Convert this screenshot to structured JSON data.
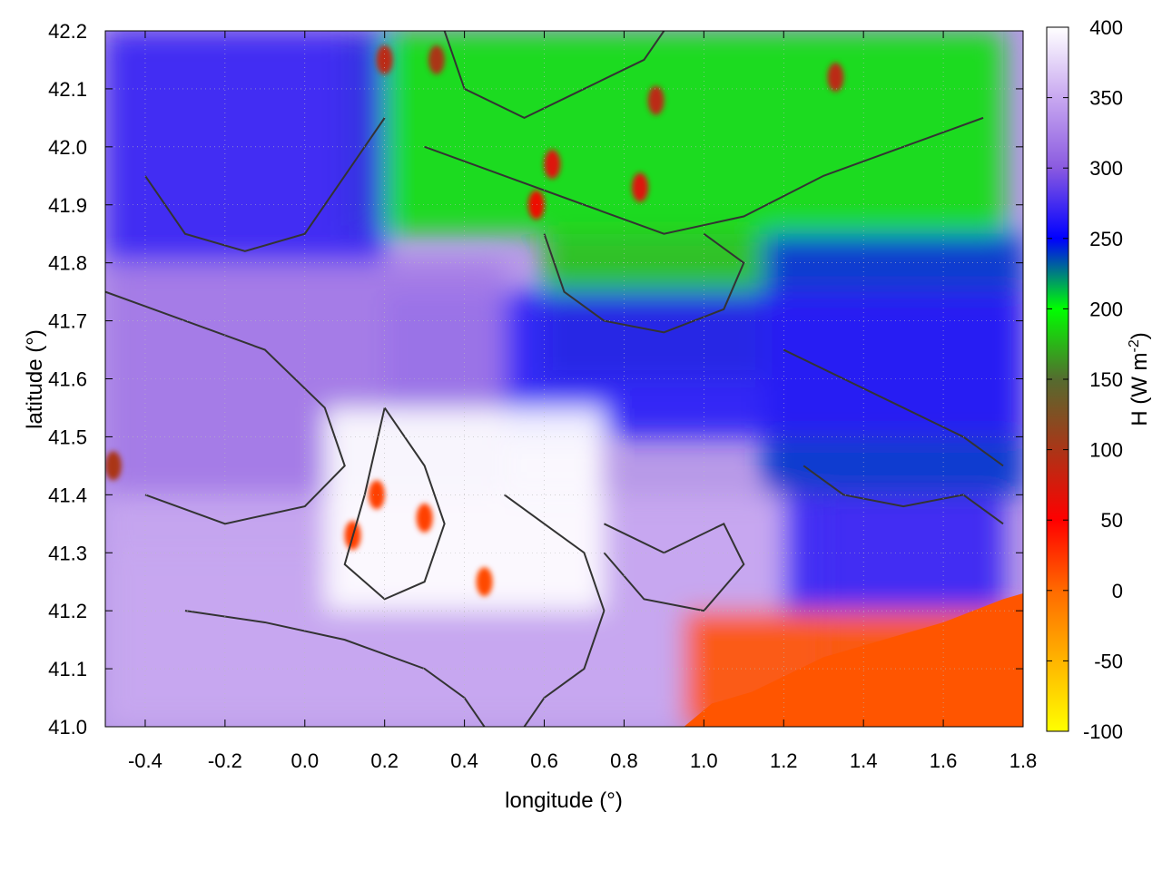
{
  "chart_data": {
    "type": "heatmap",
    "title": "",
    "xlabel": "longitude (°)",
    "ylabel": "latitude (°)",
    "colorbar_label": "H (W m-2)",
    "colorbar_label_parts": {
      "main": "H (W m",
      "sup": "-2",
      "close": ")"
    },
    "xlim": [
      -0.5,
      1.8
    ],
    "ylim": [
      41.0,
      42.2
    ],
    "x_ticks": [
      -0.4,
      -0.2,
      0.0,
      0.2,
      0.4,
      0.6,
      0.8,
      1.0,
      1.2,
      1.4,
      1.6,
      1.8
    ],
    "x_tick_labels": [
      "-0.4",
      "-0.2",
      "0.0",
      "0.2",
      "0.4",
      "0.6",
      "0.8",
      "1.0",
      "1.2",
      "1.4",
      "1.6",
      "1.8"
    ],
    "y_ticks": [
      41.0,
      41.1,
      41.2,
      41.3,
      41.4,
      41.5,
      41.6,
      41.7,
      41.8,
      41.9,
      42.0,
      42.1,
      42.2
    ],
    "y_tick_labels": [
      "41.0",
      "41.1",
      "41.2",
      "41.3",
      "41.4",
      "41.5",
      "41.6",
      "41.7",
      "41.8",
      "41.9",
      "42.0",
      "42.1",
      "42.2"
    ],
    "colorbar": {
      "min": -100,
      "max": 400,
      "ticks": [
        -100,
        -50,
        0,
        50,
        100,
        150,
        200,
        250,
        300,
        350,
        400
      ],
      "tick_labels": [
        "-100",
        "-50",
        "0",
        "50",
        "100",
        "150",
        "200",
        "250",
        "300",
        "350",
        "400"
      ],
      "stops": [
        {
          "value": -100,
          "color": "#ffff00"
        },
        {
          "value": 0,
          "color": "#ff6a00"
        },
        {
          "value": 50,
          "color": "#ff0000"
        },
        {
          "value": 150,
          "color": "#556b2f"
        },
        {
          "value": 200,
          "color": "#00ff00"
        },
        {
          "value": 250,
          "color": "#0000ff"
        },
        {
          "value": 300,
          "color": "#8a5ae0"
        },
        {
          "value": 350,
          "color": "#c8a8f0"
        },
        {
          "value": 400,
          "color": "#ffffff"
        }
      ]
    },
    "grid": true,
    "contour_color": "#333333",
    "regions": [
      {
        "name": "north-green-band",
        "x": [
          0.1,
          1.75
        ],
        "y": [
          41.85,
          42.2
        ],
        "value": 190
      },
      {
        "name": "central-green-block",
        "x": [
          0.6,
          1.15
        ],
        "y": [
          41.6,
          41.85
        ],
        "value": 180
      },
      {
        "name": "northeast-blue",
        "x": [
          1.15,
          1.8
        ],
        "y": [
          41.4,
          41.85
        ],
        "value": 240
      },
      {
        "name": "northwest-blue",
        "x": [
          -0.5,
          0.2
        ],
        "y": [
          41.8,
          42.2
        ],
        "value": 270
      },
      {
        "name": "central-blue-band",
        "x": [
          0.2,
          1.8
        ],
        "y": [
          41.5,
          41.75
        ],
        "value": 265
      },
      {
        "name": "west-purple",
        "x": [
          -0.5,
          0.5
        ],
        "y": [
          41.3,
          41.8
        ],
        "value": 320
      },
      {
        "name": "south-light",
        "x": [
          -0.5,
          1.3
        ],
        "y": [
          41.0,
          41.4
        ],
        "value": 350
      },
      {
        "name": "central-white",
        "x": [
          0.05,
          0.75
        ],
        "y": [
          41.2,
          41.55
        ],
        "value": 400
      },
      {
        "name": "southeast-sea",
        "x": [
          0.95,
          1.8
        ],
        "y": [
          41.0,
          41.2
        ],
        "value": 10
      },
      {
        "name": "east-blue-south",
        "x": [
          1.2,
          1.75
        ],
        "y": [
          41.2,
          41.4
        ],
        "value": 270
      }
    ],
    "hotspots": [
      {
        "x": 0.2,
        "y": 42.15,
        "value": 90
      },
      {
        "x": 0.33,
        "y": 42.15,
        "value": 100
      },
      {
        "x": 0.88,
        "y": 42.08,
        "value": 90
      },
      {
        "x": 1.33,
        "y": 42.12,
        "value": 90
      },
      {
        "x": 0.58,
        "y": 41.9,
        "value": 60
      },
      {
        "x": 0.84,
        "y": 41.93,
        "value": 70
      },
      {
        "x": 0.62,
        "y": 41.97,
        "value": 70
      },
      {
        "x": -0.48,
        "y": 41.45,
        "value": 100
      },
      {
        "x": 0.12,
        "y": 41.33,
        "value": 20
      },
      {
        "x": 0.3,
        "y": 41.36,
        "value": 20
      },
      {
        "x": 0.45,
        "y": 41.25,
        "value": 15
      },
      {
        "x": 0.18,
        "y": 41.4,
        "value": 20
      }
    ]
  }
}
